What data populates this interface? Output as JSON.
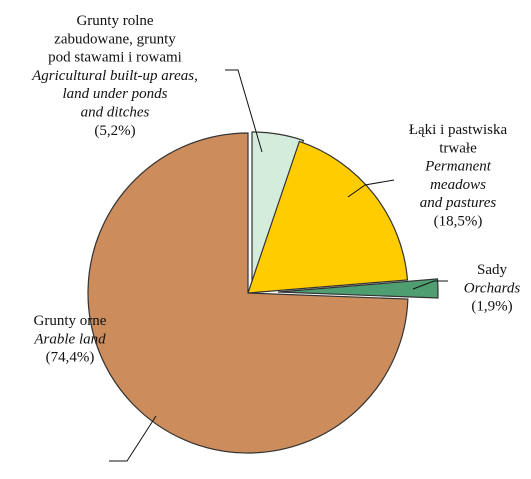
{
  "chart_data": {
    "type": "pie",
    "title": "",
    "start_angle_deg": 0,
    "direction": "clockwise",
    "slices": [
      {
        "name_pl": "Grunty rolne zabudowane, grunty pod stawami i rowami",
        "name_en": "Agricultural built-up areas, land under ponds and ditches",
        "label_lines_pl": [
          "Grunty rolne",
          "zabudowane, grunty",
          "pod stawami i rowami"
        ],
        "label_lines_en": [
          "Agricultural built-up areas,",
          "land under ponds",
          "and ditches"
        ],
        "value": 5.2,
        "value_label": "(5,2%)",
        "color": "#d4ecdc",
        "exploded": true
      },
      {
        "name_pl": "Łąki i pastwiska trwałe",
        "name_en": "Permanent meadows and pastures",
        "label_lines_pl": [
          "Łąki i pastwiska",
          "trwałe"
        ],
        "label_lines_en": [
          "Permanent",
          "meadows",
          "and pastures"
        ],
        "value": 18.5,
        "value_label": "(18,5%)",
        "color": "#ffcc00",
        "exploded": false
      },
      {
        "name_pl": "Sady",
        "name_en": "Orchards",
        "label_lines_pl": [
          "Sady"
        ],
        "label_lines_en": [
          "Orchards"
        ],
        "value": 1.9,
        "value_label": "(1,9%)",
        "color": "#4f9e72",
        "exploded": true
      },
      {
        "name_pl": "Grunty orne",
        "name_en": "Arable land",
        "label_lines_pl": [
          "Grunty orne"
        ],
        "label_lines_en": [
          "Arable land"
        ],
        "value": 74.4,
        "value_label": "(74,4%)",
        "color": "#cc8c5c",
        "exploded": false
      }
    ]
  }
}
